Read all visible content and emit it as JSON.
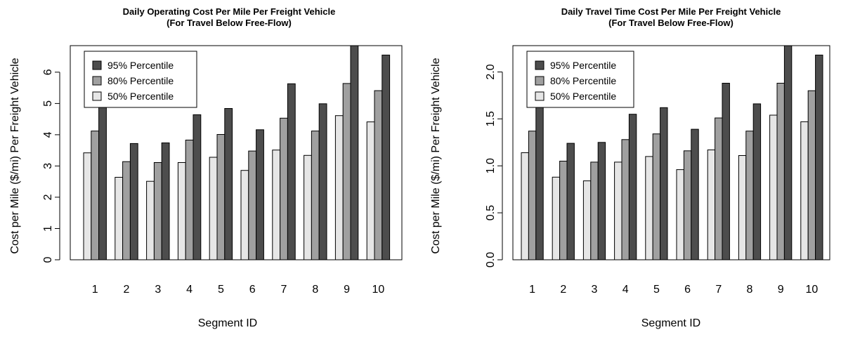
{
  "chart_data": [
    {
      "type": "bar",
      "title": "Daily Operating Cost Per Mile Per Freight Vehicle",
      "subtitle": "(For Travel Below Free-Flow)",
      "xlabel": "Segment ID",
      "ylabel": "Cost per Mile ($/mi) Per Freight Vehicle",
      "categories": [
        "1",
        "2",
        "3",
        "4",
        "5",
        "6",
        "7",
        "8",
        "9",
        "10"
      ],
      "yticks": [
        0,
        1,
        2,
        3,
        4,
        5,
        6
      ],
      "ytick_labels": [
        "0",
        "1",
        "2",
        "3",
        "4",
        "5",
        "6"
      ],
      "ylim": [
        0,
        6.85
      ],
      "grid": false,
      "legend_position": "top-left",
      "series": [
        {
          "name": "50% Percentile",
          "color": "#e6e6e6",
          "values": [
            3.42,
            2.64,
            2.51,
            3.11,
            3.28,
            2.86,
            3.51,
            3.34,
            4.61,
            4.41
          ]
        },
        {
          "name": "80% Percentile",
          "color": "#a0a0a0",
          "values": [
            4.12,
            3.14,
            3.11,
            3.83,
            4.01,
            3.48,
            4.53,
            4.12,
            5.64,
            5.41
          ]
        },
        {
          "name": "95% Percentile",
          "color": "#4d4d4d",
          "values": [
            4.91,
            3.72,
            3.74,
            4.64,
            4.84,
            4.16,
            5.63,
            4.99,
            6.85,
            6.55
          ]
        }
      ],
      "legend_order": [
        "95% Percentile",
        "80% Percentile",
        "50% Percentile"
      ]
    },
    {
      "type": "bar",
      "title": "Daily Travel Time Cost Per Mile Per Freight Vehicle",
      "subtitle": "(For Travel Below Free-Flow)",
      "xlabel": "Segment ID",
      "ylabel": "Cost per Mile ($/mi) Per Freight Vehicle",
      "categories": [
        "1",
        "2",
        "3",
        "4",
        "5",
        "6",
        "7",
        "8",
        "9",
        "10"
      ],
      "yticks": [
        0,
        0.5,
        1.0,
        1.5,
        2.0
      ],
      "ytick_labels": [
        "0.0",
        "0.5",
        "1.0",
        "1.5",
        "2.0"
      ],
      "ylim": [
        0,
        2.28
      ],
      "grid": false,
      "legend_position": "top-left",
      "series": [
        {
          "name": "50% Percentile",
          "color": "#e6e6e6",
          "values": [
            1.14,
            0.88,
            0.84,
            1.04,
            1.1,
            0.96,
            1.17,
            1.11,
            1.54,
            1.47
          ]
        },
        {
          "name": "80% Percentile",
          "color": "#a0a0a0",
          "values": [
            1.37,
            1.05,
            1.04,
            1.28,
            1.34,
            1.16,
            1.51,
            1.37,
            1.88,
            1.8
          ]
        },
        {
          "name": "95% Percentile",
          "color": "#4d4d4d",
          "values": [
            1.64,
            1.24,
            1.25,
            1.55,
            1.62,
            1.39,
            1.88,
            1.66,
            2.28,
            2.18
          ]
        }
      ],
      "legend_order": [
        "95% Percentile",
        "80% Percentile",
        "50% Percentile"
      ]
    }
  ]
}
